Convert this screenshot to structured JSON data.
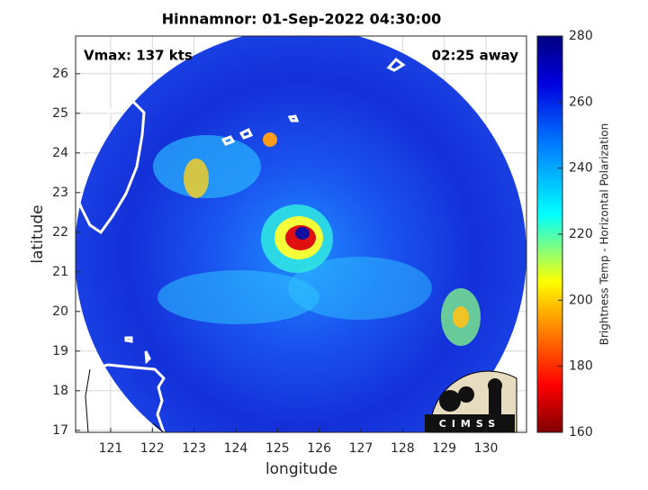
{
  "map": {
    "title": "Hinnamnor: 01-Sep-2022 04:30:00",
    "vmax_label": "Vmax: 137 kts",
    "time_label": "02:25 away",
    "xlabel": "longitude",
    "ylabel": "latitude",
    "xlim": [
      120.16,
      130.97
    ],
    "ylim": [
      16.95,
      26.95
    ],
    "xticks": [
      121,
      122,
      123,
      124,
      125,
      126,
      127,
      128,
      129,
      130
    ],
    "yticks": [
      17,
      18,
      19,
      20,
      21,
      22,
      23,
      24,
      25,
      26
    ],
    "grid": true,
    "colorbar": {
      "label": "Brightness Temp - Horizontal Polarization",
      "lim": [
        160,
        280
      ],
      "ticks": [
        160,
        180,
        200,
        220,
        240,
        260,
        280
      ]
    },
    "logo": "CIMSS"
  }
}
